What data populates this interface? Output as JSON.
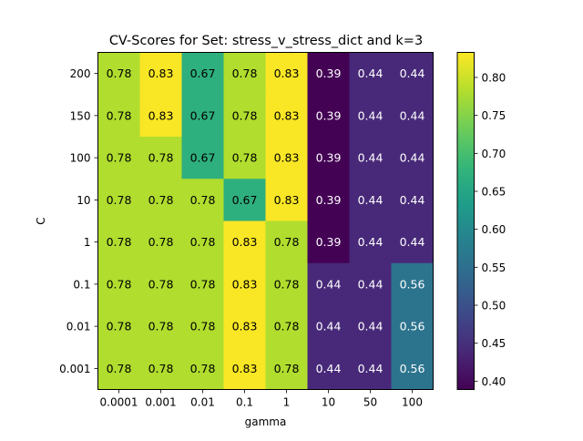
{
  "chart_data": {
    "type": "heatmap",
    "title": "CV-Scores for Set: stress_v_stress_dict and k=3",
    "xlabel": "gamma",
    "ylabel": "C",
    "x_categories": [
      "0.0001",
      "0.001",
      "0.01",
      "0.1",
      "1",
      "10",
      "50",
      "100"
    ],
    "y_categories": [
      "200",
      "150",
      "100",
      "10",
      "1",
      "0.1",
      "0.01",
      "0.001"
    ],
    "values": [
      [
        0.78,
        0.83,
        0.67,
        0.78,
        0.83,
        0.39,
        0.44,
        0.44
      ],
      [
        0.78,
        0.83,
        0.67,
        0.78,
        0.83,
        0.39,
        0.44,
        0.44
      ],
      [
        0.78,
        0.78,
        0.67,
        0.78,
        0.83,
        0.39,
        0.44,
        0.44
      ],
      [
        0.78,
        0.78,
        0.78,
        0.67,
        0.83,
        0.39,
        0.44,
        0.44
      ],
      [
        0.78,
        0.78,
        0.78,
        0.83,
        0.78,
        0.39,
        0.44,
        0.44
      ],
      [
        0.78,
        0.78,
        0.78,
        0.83,
        0.78,
        0.44,
        0.44,
        0.56
      ],
      [
        0.78,
        0.78,
        0.78,
        0.83,
        0.78,
        0.44,
        0.44,
        0.56
      ],
      [
        0.78,
        0.78,
        0.78,
        0.83,
        0.78,
        0.44,
        0.44,
        0.56
      ]
    ],
    "value_labels": [
      [
        "0.78",
        "0.83",
        "0.67",
        "0.78",
        "0.83",
        "0.39",
        "0.44",
        "0.44"
      ],
      [
        "0.78",
        "0.83",
        "0.67",
        "0.78",
        "0.83",
        "0.39",
        "0.44",
        "0.44"
      ],
      [
        "0.78",
        "0.78",
        "0.67",
        "0.78",
        "0.83",
        "0.39",
        "0.44",
        "0.44"
      ],
      [
        "0.78",
        "0.78",
        "0.78",
        "0.67",
        "0.83",
        "0.39",
        "0.44",
        "0.44"
      ],
      [
        "0.78",
        "0.78",
        "0.78",
        "0.83",
        "0.78",
        "0.39",
        "0.44",
        "0.44"
      ],
      [
        "0.78",
        "0.78",
        "0.78",
        "0.83",
        "0.78",
        "0.44",
        "0.44",
        "0.56"
      ],
      [
        "0.78",
        "0.78",
        "0.78",
        "0.83",
        "0.78",
        "0.44",
        "0.44",
        "0.56"
      ],
      [
        "0.78",
        "0.78",
        "0.78",
        "0.83",
        "0.78",
        "0.44",
        "0.44",
        "0.56"
      ]
    ],
    "colormap": "viridis",
    "colorbar": {
      "range": [
        0.389,
        0.833
      ],
      "ticks": [
        0.4,
        0.45,
        0.5,
        0.55,
        0.6,
        0.65,
        0.7,
        0.75,
        0.8
      ],
      "tick_labels": [
        "0.40",
        "0.45",
        "0.50",
        "0.55",
        "0.60",
        "0.65",
        "0.70",
        "0.75",
        "0.80"
      ]
    },
    "grid": false
  }
}
